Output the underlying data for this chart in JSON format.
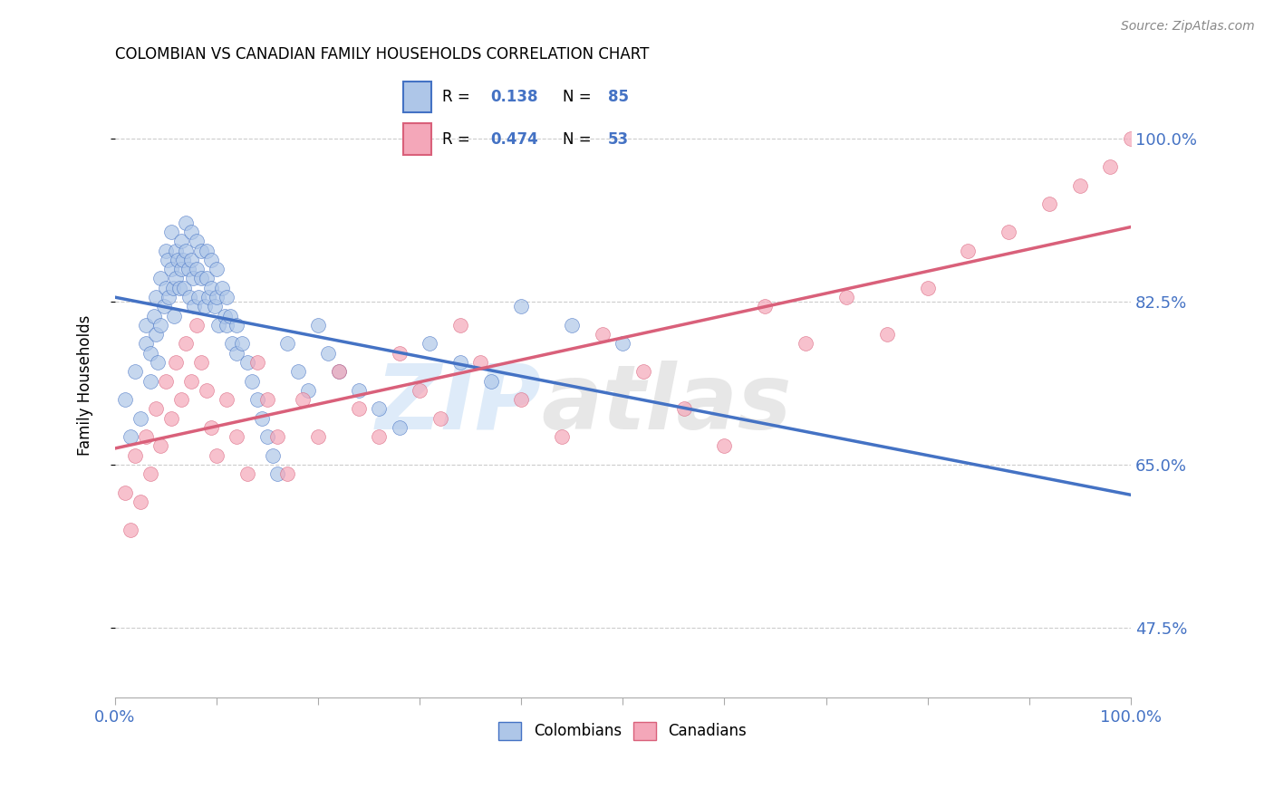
{
  "title": "COLOMBIAN VS CANADIAN FAMILY HOUSEHOLDS CORRELATION CHART",
  "source": "Source: ZipAtlas.com",
  "ylabel": "Family Households",
  "ytick_labels": [
    "100.0%",
    "82.5%",
    "65.0%",
    "47.5%"
  ],
  "ytick_values": [
    1.0,
    0.825,
    0.65,
    0.475
  ],
  "xlim": [
    0.0,
    1.0
  ],
  "ylim": [
    0.4,
    1.07
  ],
  "color_colombian": "#aec6e8",
  "color_canadian": "#f4a7b9",
  "color_line_colombian": "#4472c4",
  "color_line_canadian": "#d9607a",
  "color_axis_labels": "#4472c4",
  "watermark_zip": "ZIP",
  "watermark_atlas": "atlas",
  "legend_entries": [
    "Colombians",
    "Canadians"
  ],
  "colombian_x": [
    0.01,
    0.015,
    0.02,
    0.025,
    0.03,
    0.03,
    0.035,
    0.035,
    0.038,
    0.04,
    0.04,
    0.042,
    0.045,
    0.045,
    0.048,
    0.05,
    0.05,
    0.052,
    0.053,
    0.055,
    0.055,
    0.057,
    0.058,
    0.06,
    0.06,
    0.062,
    0.063,
    0.065,
    0.065,
    0.067,
    0.068,
    0.07,
    0.07,
    0.072,
    0.073,
    0.075,
    0.075,
    0.077,
    0.078,
    0.08,
    0.08,
    0.082,
    0.085,
    0.085,
    0.088,
    0.09,
    0.09,
    0.092,
    0.095,
    0.095,
    0.098,
    0.1,
    0.1,
    0.102,
    0.105,
    0.108,
    0.11,
    0.11,
    0.113,
    0.115,
    0.12,
    0.12,
    0.125,
    0.13,
    0.135,
    0.14,
    0.145,
    0.15,
    0.155,
    0.16,
    0.17,
    0.18,
    0.19,
    0.2,
    0.21,
    0.22,
    0.24,
    0.26,
    0.28,
    0.31,
    0.34,
    0.37,
    0.4,
    0.45,
    0.5
  ],
  "colombian_y": [
    0.72,
    0.68,
    0.75,
    0.7,
    0.8,
    0.78,
    0.77,
    0.74,
    0.81,
    0.83,
    0.79,
    0.76,
    0.85,
    0.8,
    0.82,
    0.88,
    0.84,
    0.87,
    0.83,
    0.9,
    0.86,
    0.84,
    0.81,
    0.88,
    0.85,
    0.87,
    0.84,
    0.89,
    0.86,
    0.87,
    0.84,
    0.91,
    0.88,
    0.86,
    0.83,
    0.9,
    0.87,
    0.85,
    0.82,
    0.89,
    0.86,
    0.83,
    0.88,
    0.85,
    0.82,
    0.88,
    0.85,
    0.83,
    0.87,
    0.84,
    0.82,
    0.86,
    0.83,
    0.8,
    0.84,
    0.81,
    0.83,
    0.8,
    0.81,
    0.78,
    0.8,
    0.77,
    0.78,
    0.76,
    0.74,
    0.72,
    0.7,
    0.68,
    0.66,
    0.64,
    0.78,
    0.75,
    0.73,
    0.8,
    0.77,
    0.75,
    0.73,
    0.71,
    0.69,
    0.78,
    0.76,
    0.74,
    0.82,
    0.8,
    0.78
  ],
  "canadian_x": [
    0.01,
    0.015,
    0.02,
    0.025,
    0.03,
    0.035,
    0.04,
    0.045,
    0.05,
    0.055,
    0.06,
    0.065,
    0.07,
    0.075,
    0.08,
    0.085,
    0.09,
    0.095,
    0.1,
    0.11,
    0.12,
    0.13,
    0.14,
    0.15,
    0.16,
    0.17,
    0.185,
    0.2,
    0.22,
    0.24,
    0.26,
    0.28,
    0.3,
    0.32,
    0.34,
    0.36,
    0.4,
    0.44,
    0.48,
    0.52,
    0.56,
    0.6,
    0.64,
    0.68,
    0.72,
    0.76,
    0.8,
    0.84,
    0.88,
    0.92,
    0.95,
    0.98,
    1.0
  ],
  "canadian_y": [
    0.62,
    0.58,
    0.66,
    0.61,
    0.68,
    0.64,
    0.71,
    0.67,
    0.74,
    0.7,
    0.76,
    0.72,
    0.78,
    0.74,
    0.8,
    0.76,
    0.73,
    0.69,
    0.66,
    0.72,
    0.68,
    0.64,
    0.76,
    0.72,
    0.68,
    0.64,
    0.72,
    0.68,
    0.75,
    0.71,
    0.68,
    0.77,
    0.73,
    0.7,
    0.8,
    0.76,
    0.72,
    0.68,
    0.79,
    0.75,
    0.71,
    0.67,
    0.82,
    0.78,
    0.83,
    0.79,
    0.84,
    0.88,
    0.9,
    0.93,
    0.95,
    0.97,
    1.0
  ]
}
